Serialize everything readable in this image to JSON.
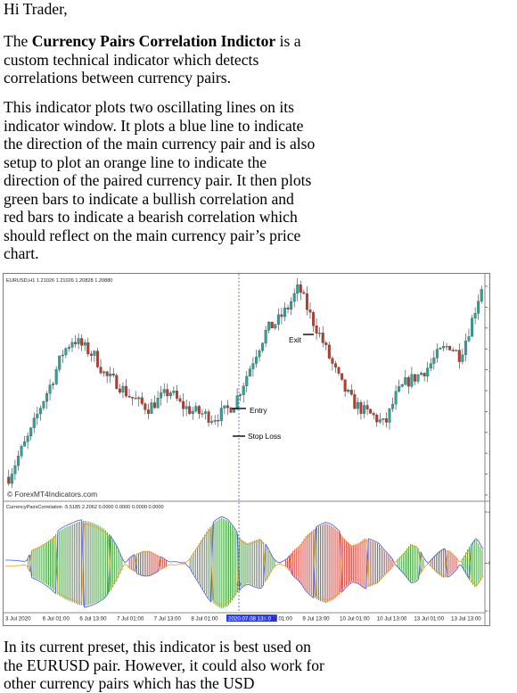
{
  "greeting": "Hi Trader,",
  "intro": {
    "prefix": "The ",
    "bold": "Currency Pairs Correlation Indictor",
    "suffix": " is a custom technical indicator which detects correlations between currency pairs."
  },
  "description": "This indicator plots two oscillating lines on its indicator window. It plots a blue line to indicate the direction of the main currency pair and is also setup to plot an orange line to indicate the direction of the paired currency pair. It then plots green bars to indicate a bullish correlation and red bars to indicate a bearish correlation which should reflect on the main currency pair’s price chart.",
  "footer_text": "In its current preset, this indicator is best used on the EURUSD pair. However, it could also work for other currency pairs which has the USD",
  "chart": {
    "main_header": "EURUSD,H1  1.21026 1.21026 1.20828 1.20880",
    "indicator_header": "CurrencyPairsCorrelation -5.5185 2.2062 0.0000 0.0000 0.0000 0.0000",
    "watermark": "© ForexMT4Indicators.com",
    "annotations": {
      "entry": "Entry",
      "stop_loss": "Stop Loss",
      "exit": "Exit"
    },
    "highlight_date": "2020.07.08 13:00",
    "colors": {
      "bull": "#26a69a",
      "bear": "#c0392b",
      "green_bar": "#3f9a3a",
      "red_bar": "#d33a32",
      "main_line": "#4a5bd6",
      "pair_line": "#e6a21c",
      "cursor": "#2b3cff"
    }
  },
  "chart_data": [
    {
      "type": "candlestick",
      "title": "EURUSD,H1",
      "x_tick_labels": [
        "3 Jul 2020",
        "6 Jul 01:00",
        "6 Jul 13:00",
        "7 Jul 01:00",
        "7 Jul 13:00",
        "8 Jul 01:00",
        "2020.07.08 13:00",
        "9 Jul 01:00",
        "9 Jul 13:00",
        "10 Jul 01:00",
        "10 Jul 13:00",
        "13 Jul 01:00",
        "13 Jul 13:00"
      ],
      "y_tick_labels": [
        "1.13645",
        "1.13500",
        "1.13355",
        "1.13210",
        "1.13065",
        "1.12920",
        "1.12775",
        "1.12630",
        "1.12485",
        "1.12340",
        "1.12195"
      ],
      "ylim": [
        1.12195,
        1.13645
      ],
      "close_path": [
        1.1232,
        1.1248,
        1.1262,
        1.1282,
        1.1298,
        1.1318,
        1.1328,
        1.1322,
        1.1316,
        1.1302,
        1.1298,
        1.129,
        1.1284,
        1.128,
        1.1286,
        1.1292,
        1.1282,
        1.1278,
        1.1276,
        1.1273,
        1.1277,
        1.1283,
        1.13,
        1.1318,
        1.1334,
        1.134,
        1.135,
        1.1364,
        1.1345,
        1.133,
        1.1312,
        1.1296,
        1.1284,
        1.1278,
        1.1274,
        1.1268,
        1.1288,
        1.1298,
        1.1302,
        1.1308,
        1.1318,
        1.1324,
        1.1316,
        1.1338,
        1.1364
      ]
    },
    {
      "type": "histogram",
      "title": "CurrencyPairsCorrelation",
      "ylim": [
        -39.6155,
        42.7017
      ],
      "y_tick_labels": [
        "42.7017",
        "0.00",
        "-39.6155"
      ],
      "values": [
        -2.8,
        -2.8,
        -2.2,
        -1.6,
        12.4,
        14.9,
        18.4,
        22.6,
        28.6,
        32.3,
        34.8,
        37.3,
        38.5,
        37.3,
        34.8,
        31.1,
        24.9,
        15.5,
        2.5,
        -5.0,
        -8.7,
        -11.2,
        -11.2,
        -8.1,
        -5.0,
        -1.2,
        -1.6,
        -0.3,
        2.5,
        12.4,
        21.8,
        31.1,
        37.3,
        41.0,
        38.5,
        31.1,
        21.8,
        18.0,
        20.5,
        22.4,
        14.9,
        3.7,
        -0.6,
        -3.7,
        -11.2,
        -16.2,
        -24.9,
        -29.9,
        -33.6,
        -36.0,
        -33.6,
        -28.6,
        -21.1,
        -16.2,
        -18.0,
        -22.4,
        -20.5,
        -18.0,
        -11.2,
        -5.0,
        3.7,
        9.9,
        17.4,
        15.5,
        3.7,
        -2.5,
        -8.7,
        -13.1,
        -11.2,
        -5.0,
        5.0,
        14.9,
        22.4,
        12.4
      ]
    }
  ]
}
